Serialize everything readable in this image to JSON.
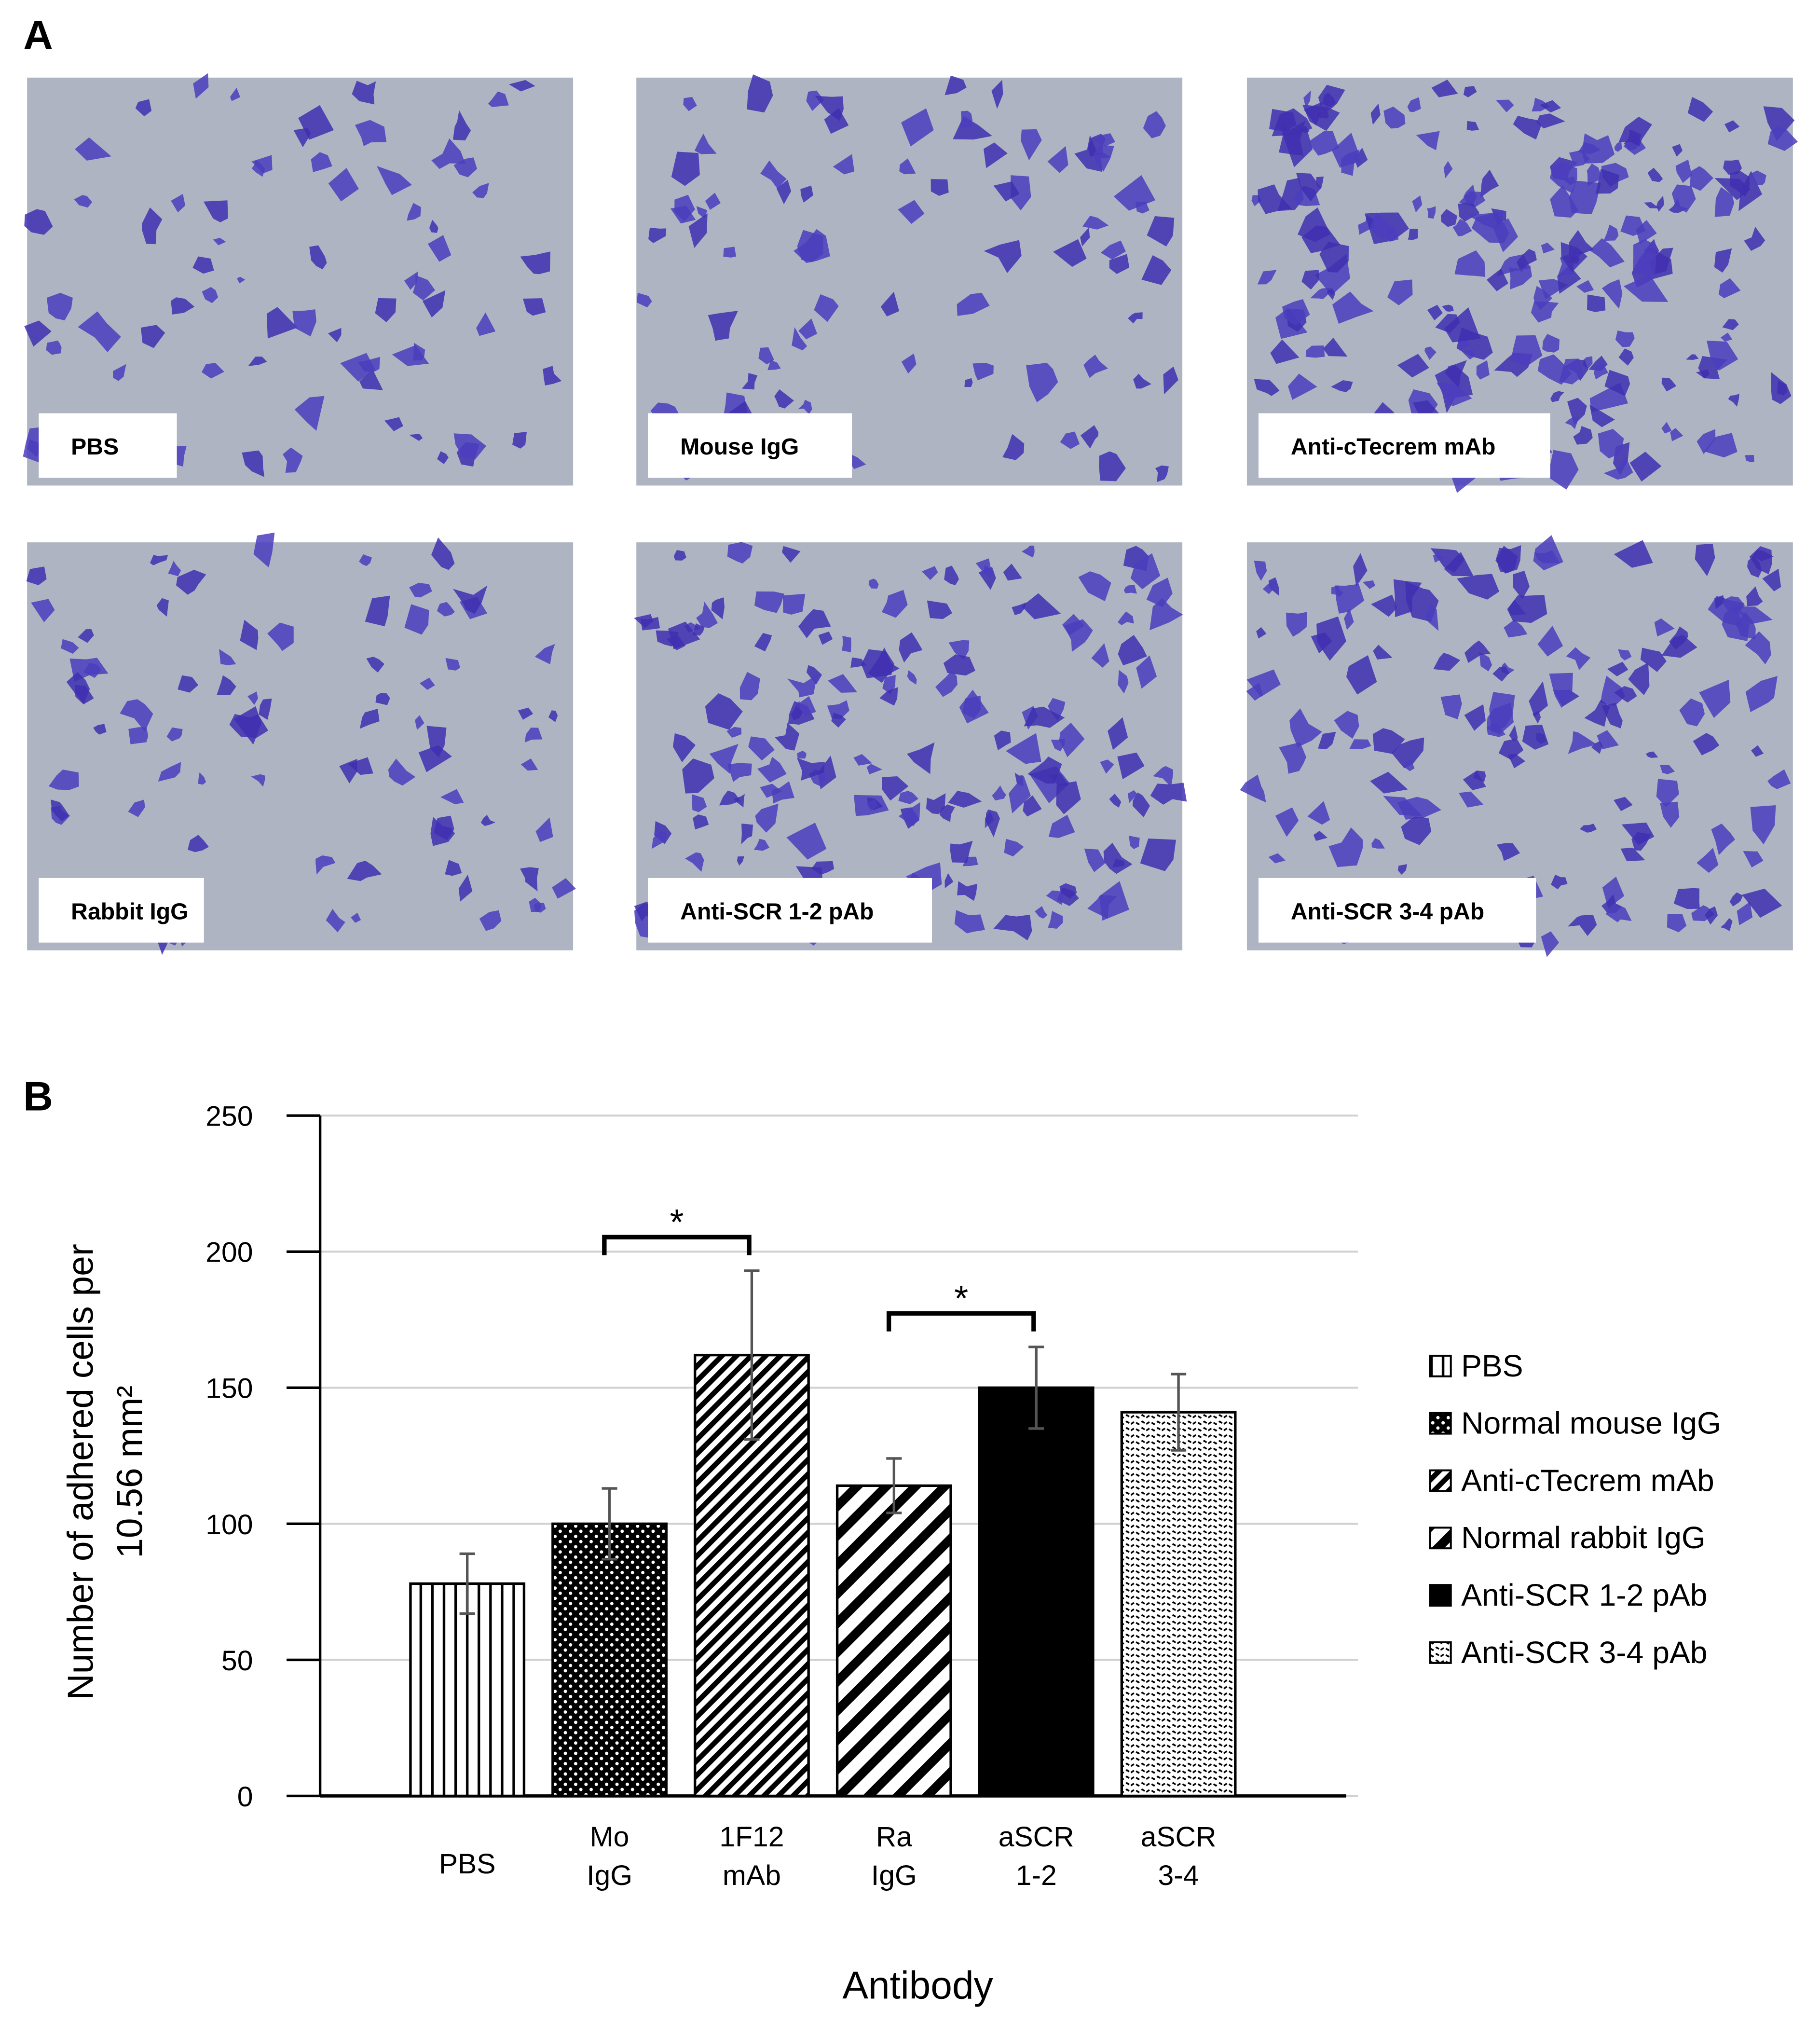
{
  "panel_labels": [
    "A",
    "B"
  ],
  "micrographs": [
    {
      "label": "PBS"
    },
    {
      "label": "Mouse IgG"
    },
    {
      "label": "Anti-cTecrem mAb"
    },
    {
      "label": "Rabbit IgG"
    },
    {
      "label": "Anti-SCR 1-2 pAb"
    },
    {
      "label": "Anti-SCR 3-4 pAb"
    }
  ],
  "chart_data": {
    "type": "bar",
    "categories": [
      "PBS",
      "Mo IgG",
      "1F12 mAb",
      "Ra IgG",
      "aSCR 1-2",
      "aSCR 3-4"
    ],
    "values": [
      78,
      100,
      162,
      114,
      150,
      141
    ],
    "errors": [
      11,
      13,
      31,
      10,
      15,
      14
    ],
    "legend": [
      "PBS",
      "Normal mouse IgG",
      "Anti-cTecrem mAb",
      "Normal rabbit IgG",
      "Anti-SCR 1-2 pAb",
      "Anti-SCR 3-4 pAb"
    ],
    "patterns": [
      "vertical",
      "dots",
      "diagonal-fine",
      "diagonal-wide",
      "solid",
      "wave"
    ],
    "ylim": [
      0,
      250
    ],
    "yticks": [
      0,
      50,
      100,
      150,
      200,
      250
    ],
    "grid": true,
    "y_label": [
      "Number of adhered cells per",
      "10.56 mm²"
    ],
    "x_label": "Antibody",
    "annotations": [
      {
        "from": 1,
        "to": 2,
        "label": "*"
      },
      {
        "from": 3,
        "to": 4,
        "label": "*"
      }
    ]
  }
}
